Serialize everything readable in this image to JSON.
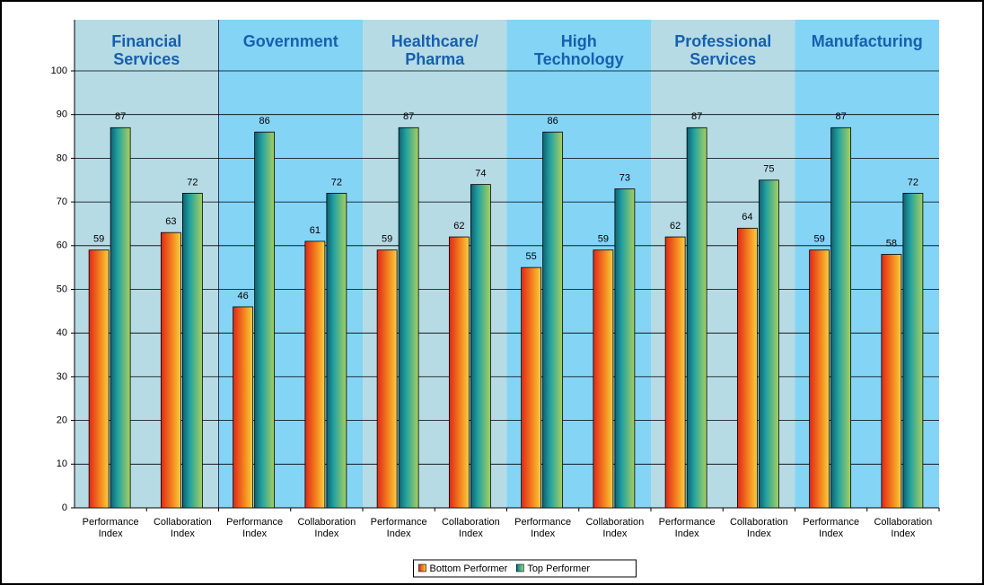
{
  "chart_data": {
    "type": "bar",
    "groups": [
      "Financial Services",
      "Government",
      "Healthcare/ Pharma",
      "High Technology",
      "Professional Services",
      "Manufacturing"
    ],
    "categories": [
      "Performance Index",
      "Collaboration Index",
      "Performance Index",
      "Collaboration Index",
      "Performance Index",
      "Collaboration Index",
      "Performance Index",
      "Collaboration Index",
      "Performance Index",
      "Collaboration Index",
      "Performance Index",
      "Collaboration Index"
    ],
    "series": [
      {
        "name": "Bottom Performer",
        "color": "#f06020",
        "values": [
          59,
          63,
          46,
          61,
          59,
          62,
          55,
          59,
          62,
          64,
          59,
          58
        ]
      },
      {
        "name": "Top Performer",
        "color": "#4aa060",
        "values": [
          87,
          72,
          86,
          72,
          87,
          74,
          86,
          73,
          87,
          75,
          87,
          72
        ]
      }
    ],
    "ylim": [
      0,
      100
    ],
    "yticks": [
      0,
      10,
      20,
      30,
      40,
      50,
      60,
      70,
      80,
      90,
      100
    ],
    "grid": true
  }
}
